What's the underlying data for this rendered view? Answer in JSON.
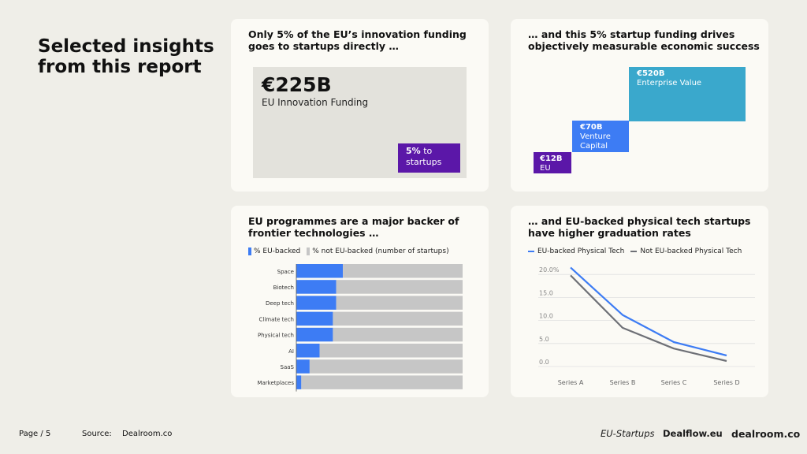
{
  "page": {
    "title": "Selected insights from this report",
    "page_label": "Page",
    "page_number": "/ 5",
    "source_label": "Source:",
    "source_value": "Dealroom.co",
    "brands": [
      "EU-Startups",
      "Dealflow.eu",
      "dealroom.co"
    ]
  },
  "colors": {
    "eu_purple": "#5b17a8",
    "blue": "#3d7cf4",
    "teal": "#3aa8cc",
    "grey": "#c6c6c6",
    "dark_line": "#6e7076"
  },
  "card1": {
    "title": "Only 5% of the EU’s innovation funding goes to startups directly …",
    "funding_value": "€225B",
    "funding_label": "EU Innovation Funding",
    "startup_pct": "5%",
    "startup_to": "to",
    "startup_label": "startups"
  },
  "card2": {
    "title": "… and this 5% startup funding drives objectively measurable economic success",
    "steps": [
      {
        "value": "€12B",
        "label": "EU"
      },
      {
        "value": "€70B",
        "label": "Venture Capital"
      },
      {
        "value": "€520B",
        "label": "Enterprise Value"
      }
    ]
  },
  "card3": {
    "title": "EU programmes are a major backer of frontier technologies …",
    "legend": [
      "% EU-backed",
      "% not EU-backed (number of startups)"
    ]
  },
  "card4": {
    "title": "… and EU-backed physical tech startups have higher graduation rates",
    "legend": [
      "EU-backed Physical Tech",
      "Not EU-backed Physical Tech"
    ]
  },
  "chart_data": [
    {
      "type": "bar",
      "orientation": "horizontal",
      "stacked": true,
      "title": "EU programmes are a major backer of frontier technologies …",
      "categories": [
        "Space",
        "Biotech",
        "Deep tech",
        "Climate tech",
        "Physical tech",
        "AI",
        "SaaS",
        "Marketplaces"
      ],
      "series": [
        {
          "name": "% EU-backed",
          "values": [
            28,
            24,
            24,
            22,
            22,
            14,
            8,
            3
          ]
        },
        {
          "name": "% not EU-backed (number of startups)",
          "values": [
            72,
            76,
            76,
            78,
            78,
            86,
            92,
            97
          ]
        }
      ],
      "xlim": [
        0,
        100
      ]
    },
    {
      "type": "line",
      "title": "… and EU-backed physical tech startups have higher graduation rates",
      "categories": [
        "Series A",
        "Series B",
        "Series C",
        "Series D"
      ],
      "series": [
        {
          "name": "EU-backed Physical Tech",
          "values": [
            21.5,
            11.2,
            5.3,
            2.4
          ]
        },
        {
          "name": "Not EU-backed Physical Tech",
          "values": [
            19.8,
            8.4,
            3.9,
            1.2
          ]
        }
      ],
      "yticks": [
        "0.0",
        "5.0",
        "10.0",
        "15.0",
        "20.0%"
      ],
      "ylim": [
        0,
        20
      ],
      "grid": true
    }
  ]
}
